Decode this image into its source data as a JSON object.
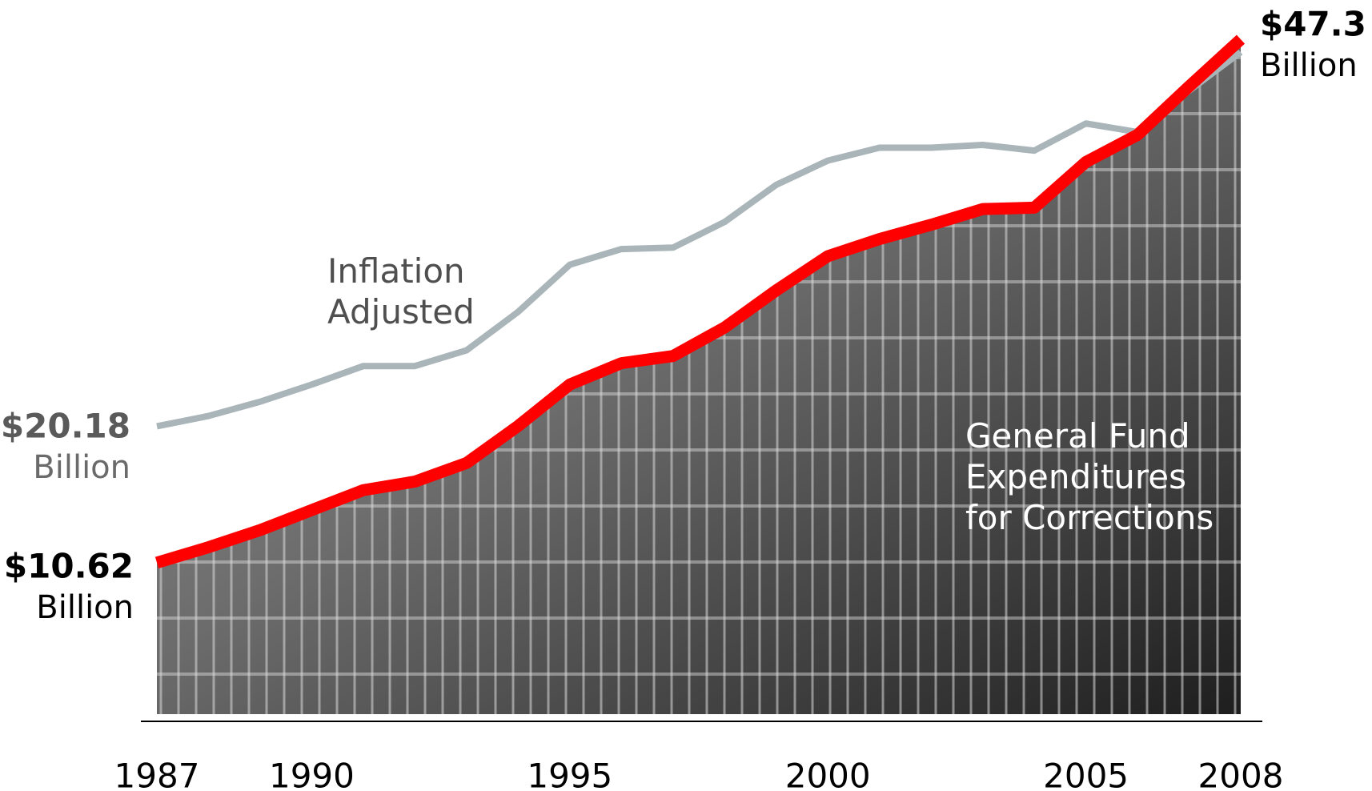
{
  "chart_data": {
    "type": "line",
    "x": [
      1987,
      1988,
      1989,
      1990,
      1991,
      1992,
      1993,
      1994,
      1995,
      1996,
      1997,
      1998,
      1999,
      2000,
      2001,
      2002,
      2003,
      2004,
      2005,
      2006,
      2007,
      2008
    ],
    "xlim": [
      1987,
      2008
    ],
    "xticks": [
      1987,
      1990,
      1995,
      2000,
      2005,
      2008
    ],
    "ylim": [
      0,
      50
    ],
    "value_unit": "Billion",
    "series": [
      {
        "label": [
          "Inflation",
          "Adjusted"
        ],
        "color": "#a9b5b9",
        "values": [
          20.18,
          20.9,
          21.9,
          23.1,
          24.4,
          24.4,
          25.5,
          28.2,
          31.5,
          32.6,
          32.7,
          34.5,
          37.1,
          38.8,
          39.7,
          39.7,
          39.9,
          39.5,
          41.4,
          40.8,
          43.7,
          46.4
        ],
        "value_labels": [
          "$20.18",
          null,
          null,
          null,
          null,
          null,
          null,
          null,
          null,
          null,
          null,
          null,
          null,
          null,
          null,
          null,
          null,
          null,
          null,
          null,
          null,
          null
        ]
      },
      {
        "label": [
          "General Fund",
          "Expenditures",
          "for Corrections"
        ],
        "color": "#ff0000",
        "values": [
          10.62,
          11.7,
          12.9,
          14.3,
          15.7,
          16.3,
          17.6,
          20.2,
          23.1,
          24.6,
          25.1,
          27.1,
          29.7,
          32.1,
          33.3,
          34.3,
          35.4,
          35.5,
          38.7,
          40.6,
          44.0,
          47.3
        ],
        "value_labels": [
          "$10.62",
          null,
          null,
          null,
          null,
          null,
          null,
          null,
          null,
          null,
          null,
          null,
          null,
          null,
          null,
          null,
          null,
          null,
          null,
          null,
          null,
          "$47.3"
        ]
      }
    ]
  }
}
